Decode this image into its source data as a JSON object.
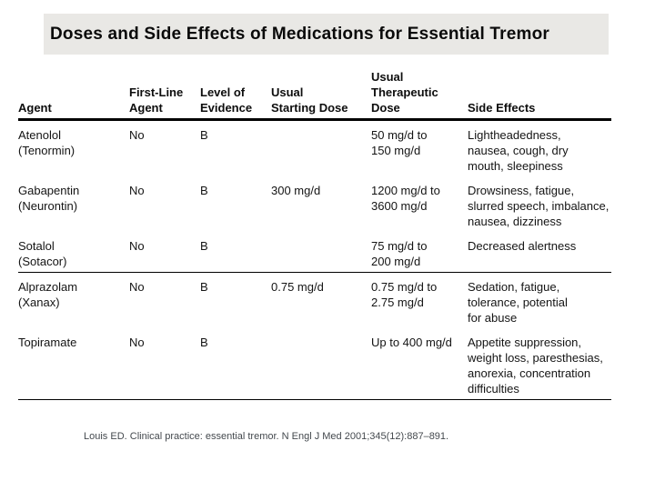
{
  "title": "Doses and Side Effects of Medications for Essential Tremor",
  "table": {
    "headers": [
      "Agent",
      "First-Line\nAgent",
      "Level of\nEvidence",
      "Usual\nStarting Dose",
      "Usual\nTherapeutic\nDose",
      "Side Effects"
    ],
    "rows": [
      {
        "agent": "Atenolol\n(Tenormin)",
        "first_line": "No",
        "evidence": "B",
        "starting_dose": "",
        "therapeutic_dose": "50 mg/d to\n150 mg/d",
        "side_effects": "Lightheadedness,\nnausea, cough, dry\nmouth, sleepiness"
      },
      {
        "agent": "Gabapentin\n(Neurontin)",
        "first_line": "No",
        "evidence": "B",
        "starting_dose": "300 mg/d",
        "therapeutic_dose": "1200 mg/d to\n3600 mg/d",
        "side_effects": "Drowsiness, fatigue,\nslurred speech, imbalance,\nnausea, dizziness"
      },
      {
        "agent": "Sotalol\n(Sotacor)",
        "first_line": "No",
        "evidence": "B",
        "starting_dose": "",
        "therapeutic_dose": "75 mg/d to\n200 mg/d",
        "side_effects": "Decreased alertness"
      },
      {
        "agent": "Alprazolam\n(Xanax)",
        "first_line": "No",
        "evidence": "B",
        "starting_dose": "0.75 mg/d",
        "therapeutic_dose": "0.75 mg/d to\n2.75 mg/d",
        "side_effects": "Sedation, fatigue,\ntolerance, potential\nfor abuse"
      },
      {
        "agent": "Topiramate",
        "first_line": "No",
        "evidence": "B",
        "starting_dose": "",
        "therapeutic_dose": "Up to 400 mg/d",
        "side_effects": "Appetite suppression,\nweight loss, paresthesias,\nanorexia, concentration\ndifficulties"
      }
    ]
  },
  "citation": "Louis ED. Clinical practice: essential tremor. N Engl J Med 2001;345(12):887–891.",
  "colors": {
    "title_bar_bg": "#e9e8e5",
    "rule": "#000000",
    "body_text": "#141414",
    "citation_text": "#44494e"
  }
}
